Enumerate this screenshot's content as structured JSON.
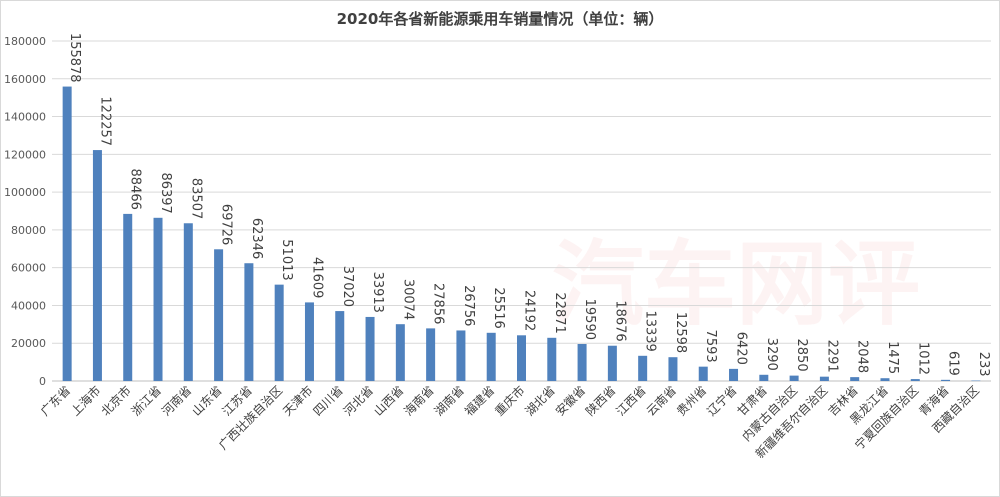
{
  "chart_data": {
    "type": "bar",
    "title": "2020年各省新能源乘用车销量情况（单位：辆）",
    "categories": [
      "广东省",
      "上海市",
      "北京市",
      "浙江省",
      "河南省",
      "山东省",
      "江苏省",
      "广西壮族自治区",
      "天津市",
      "四川省",
      "河北省",
      "山西省",
      "海南省",
      "湖南省",
      "福建省",
      "重庆市",
      "湖北省",
      "安徽省",
      "陕西省",
      "江西省",
      "云南省",
      "贵州省",
      "辽宁省",
      "甘肃省",
      "内蒙古自治区",
      "新疆维吾尔自治区",
      "吉林省",
      "黑龙江省",
      "宁夏回族自治区",
      "青海省",
      "西藏自治区"
    ],
    "values": [
      155878,
      122257,
      88466,
      86397,
      83507,
      69726,
      62346,
      51013,
      41609,
      37020,
      33913,
      30074,
      27856,
      26756,
      25516,
      24192,
      22871,
      19590,
      18676,
      13339,
      12598,
      7593,
      6420,
      3290,
      2850,
      2291,
      2048,
      1475,
      1012,
      619,
      233
    ],
    "ylim": [
      0,
      180000
    ],
    "yticks": [
      0,
      20000,
      40000,
      60000,
      80000,
      100000,
      120000,
      140000,
      160000,
      180000
    ],
    "xlabel": "",
    "ylabel": "",
    "grid": true,
    "bar_color": "#4f81bd",
    "watermark_text": "汽车网评"
  }
}
